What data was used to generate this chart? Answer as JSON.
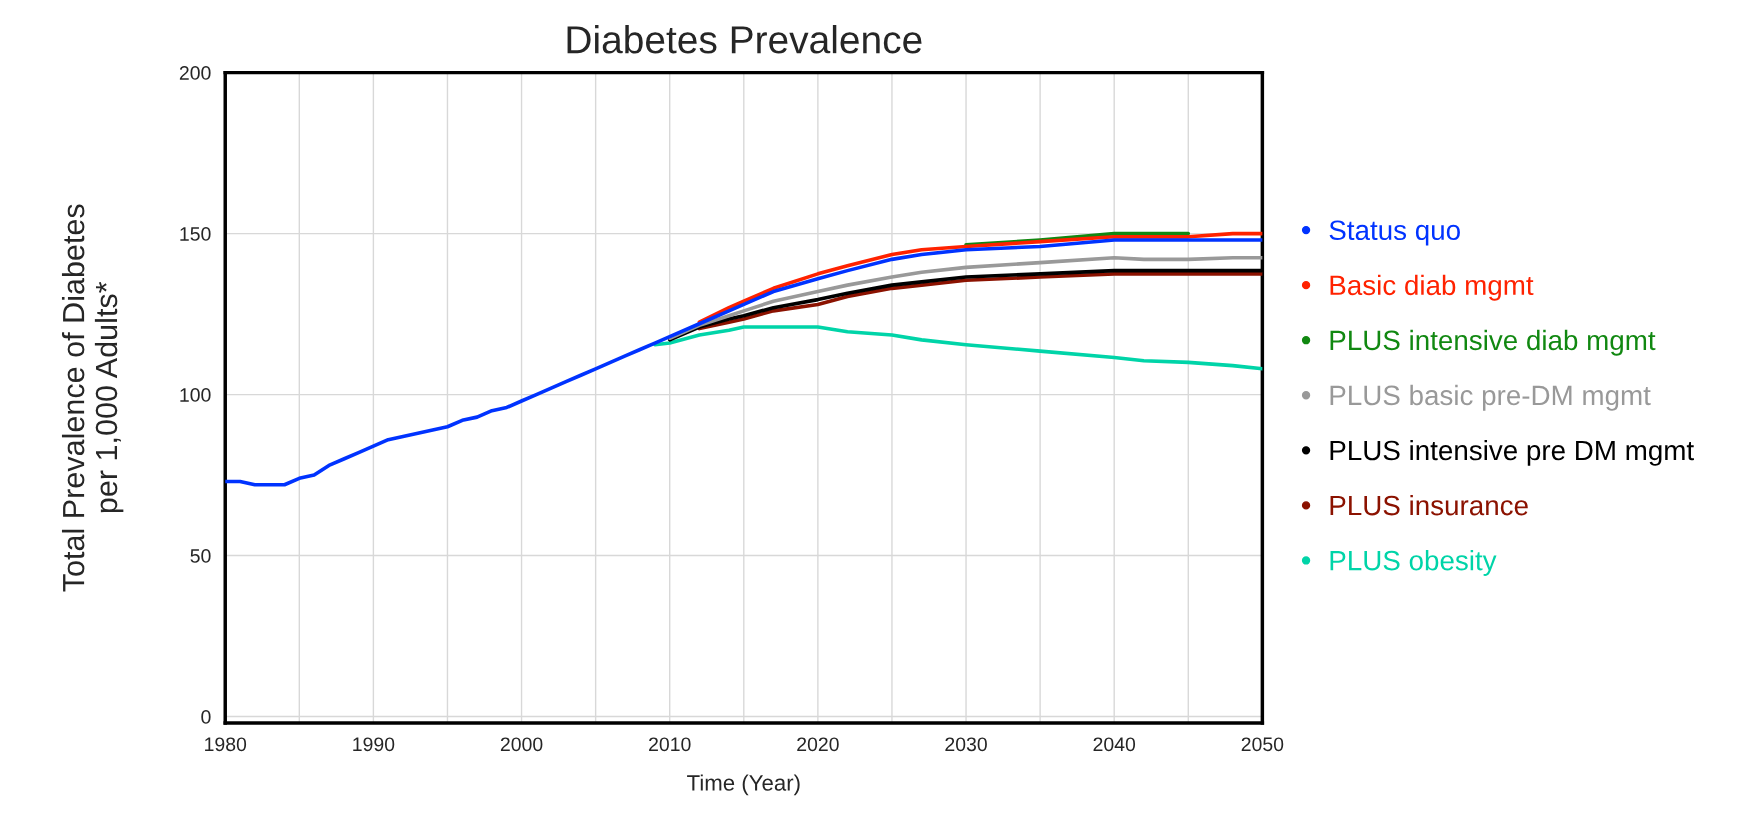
{
  "chart_data": {
    "type": "line",
    "title": "Diabetes Prevalence",
    "xlabel": "Time (Year)",
    "ylabel": "Total Prevalence of Diabetes\nper 1,000 Adults*",
    "x": [
      1980,
      1981,
      1982,
      1983,
      1984,
      1985,
      1986,
      1987,
      1988,
      1989,
      1990,
      1991,
      1992,
      1993,
      1994,
      1995,
      1996,
      1997,
      1998,
      1999,
      2000,
      2001,
      2002,
      2003,
      2004,
      2005,
      2006,
      2007,
      2008,
      2009,
      2010,
      2012,
      2014,
      2015,
      2017,
      2020,
      2022,
      2025,
      2027,
      2030,
      2035,
      2040,
      2042,
      2045,
      2048,
      2050
    ],
    "series": [
      {
        "name": "Status quo",
        "color": "#0033ff",
        "values": [
          73,
          73,
          72,
          72,
          72,
          74,
          75,
          78,
          80,
          82,
          84,
          86,
          87,
          88,
          89,
          90,
          92,
          93,
          95,
          96,
          98,
          100,
          102,
          104,
          106,
          108,
          110,
          112,
          114,
          116,
          118,
          122,
          126,
          128,
          132,
          136,
          138.5,
          142,
          143.5,
          145,
          146,
          148,
          148,
          148,
          148,
          148
        ]
      },
      {
        "name": "Basic diab mgmt",
        "color": "#ff2200",
        "values": [
          null,
          null,
          null,
          null,
          null,
          null,
          null,
          null,
          null,
          null,
          null,
          null,
          null,
          null,
          null,
          null,
          null,
          null,
          null,
          null,
          null,
          null,
          null,
          null,
          null,
          null,
          null,
          null,
          null,
          null,
          null,
          122.5,
          127,
          129,
          133,
          137.5,
          140,
          143.5,
          145,
          146,
          147.5,
          149,
          149,
          149,
          150,
          150
        ]
      },
      {
        "name": "PLUS intensive diab mgmt",
        "color": "#118811",
        "values": [
          null,
          null,
          null,
          null,
          null,
          null,
          null,
          null,
          null,
          null,
          null,
          null,
          null,
          null,
          null,
          null,
          null,
          null,
          null,
          null,
          null,
          null,
          null,
          null,
          null,
          null,
          null,
          null,
          null,
          null,
          null,
          null,
          null,
          null,
          null,
          null,
          null,
          null,
          null,
          146.5,
          148,
          150,
          150,
          150,
          null,
          null
        ]
      },
      {
        "name": "PLUS basic pre-DM mgmt",
        "color": "#999999",
        "values": [
          null,
          null,
          null,
          null,
          null,
          null,
          null,
          null,
          null,
          null,
          null,
          null,
          null,
          null,
          null,
          null,
          null,
          null,
          null,
          null,
          null,
          null,
          null,
          null,
          null,
          null,
          null,
          null,
          null,
          null,
          117.5,
          121.5,
          124.5,
          126,
          129,
          132,
          134,
          136.5,
          138,
          139.5,
          141,
          142.5,
          142,
          142,
          142.5,
          142.5
        ]
      },
      {
        "name": "PLUS intensive pre DM mgmt",
        "color": "#000000",
        "values": [
          null,
          null,
          null,
          null,
          null,
          null,
          null,
          null,
          null,
          null,
          null,
          null,
          null,
          null,
          null,
          null,
          null,
          null,
          null,
          null,
          null,
          null,
          null,
          null,
          null,
          null,
          null,
          null,
          null,
          null,
          117,
          121,
          123.5,
          124.5,
          127,
          129.5,
          131.5,
          134,
          135,
          136.5,
          137.5,
          138.5,
          138.5,
          138.5,
          138.5,
          138.5
        ]
      },
      {
        "name": "PLUS insurance",
        "color": "#8b1200",
        "values": [
          null,
          null,
          null,
          null,
          null,
          null,
          null,
          null,
          null,
          null,
          null,
          null,
          null,
          null,
          null,
          null,
          null,
          null,
          null,
          null,
          null,
          null,
          null,
          null,
          null,
          null,
          null,
          null,
          null,
          null,
          null,
          120.5,
          122.5,
          123.5,
          126,
          128,
          130.5,
          133,
          134,
          135.5,
          136.5,
          137.5,
          137.5,
          137.5,
          137.5,
          137.5
        ]
      },
      {
        "name": "PLUS obesity",
        "color": "#00d4a8",
        "values": [
          null,
          null,
          null,
          null,
          null,
          null,
          null,
          null,
          null,
          null,
          null,
          null,
          null,
          null,
          null,
          null,
          null,
          null,
          null,
          null,
          null,
          null,
          null,
          null,
          null,
          null,
          null,
          null,
          null,
          115.5,
          116,
          118.5,
          120,
          121,
          121,
          121,
          119.5,
          118.5,
          117,
          115.5,
          113.5,
          111.5,
          110.5,
          110,
          109,
          108
        ]
      }
    ],
    "xlim": [
      1980,
      2050
    ],
    "xticks": [
      1980,
      {
        "value": 1985,
        "label": null
      },
      1990,
      {
        "value": 1995,
        "label": null
      },
      2000,
      {
        "value": 2005,
        "label": null
      },
      2010,
      {
        "value": 2015,
        "label": null
      },
      2020,
      {
        "value": 2025,
        "label": null
      },
      2030,
      {
        "value": 2035,
        "label": null
      },
      2040,
      {
        "value": 2045,
        "label": null
      },
      2050
    ],
    "ylim": [
      -2,
      200
    ],
    "yticks": [
      0,
      50,
      100,
      150,
      200
    ],
    "grid": true,
    "legend": "right",
    "marker": "none",
    "line_style": "solid"
  }
}
